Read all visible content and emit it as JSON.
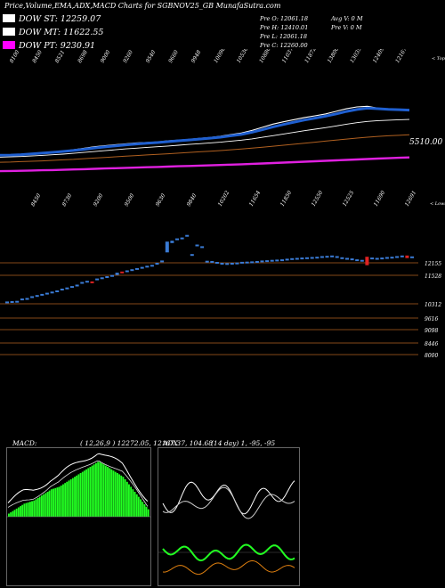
{
  "header": "Price,Volume,EMA,ADX,MACD Charts for SGBNOV25_GB MunafaSutra.com",
  "legend": [
    {
      "label": "DOW ST: 12259.07",
      "color": "#ffffff"
    },
    {
      "label": "DOW MT: 11622.55",
      "color": "#ffffff"
    },
    {
      "label": "DOW PT: 9230.91",
      "color": "#ff00ff"
    }
  ],
  "ohlc": {
    "open": "Pre O: 12061.18",
    "high": "Pre H: 12410.01",
    "low": "Pre L: 12061.18",
    "close": "Pre C: 12260.00",
    "avg_vol": "Avg V: 0 M",
    "pre_vol": "Pre V: 0 M"
  },
  "colors": {
    "up": "#3a7bd5",
    "down": "#dd2222",
    "ema_blue": "#1f5fd0",
    "ema_pink": "#e020e0",
    "ema_brown": "#8b4513",
    "macd_bar": "#22ff22",
    "grid": "#b06020"
  },
  "chart_data": [
    {
      "type": "line",
      "title": "EMA",
      "top_labels": [
        "8100",
        "8450",
        "8521",
        "8698",
        "9000",
        "9260",
        "9540",
        "9660",
        "9948",
        "10098",
        "10536",
        "10880",
        "11037",
        "11872",
        "13800",
        "13035",
        "12409",
        "12167"
      ],
      "axis_labels": {
        "top_right": "< Tops",
        "value_right": "5510.00"
      },
      "series": [
        {
          "name": "price",
          "values": [
            8400,
            8420,
            8480,
            8560,
            8640,
            8700,
            8780,
            8880,
            9000,
            9120,
            9200,
            9280,
            9350,
            9420,
            9460,
            9500,
            9580,
            9640,
            9700,
            9780,
            9850,
            9950,
            10080,
            10200,
            10400,
            10650,
            10900,
            11080,
            11250,
            11420,
            11550,
            11700,
            11900,
            12100,
            12250,
            12300,
            12150,
            12050,
            12020,
            11980
          ]
        },
        {
          "name": "ema_short",
          "values": [
            8450,
            8460,
            8500,
            8560,
            8620,
            8680,
            8750,
            8830,
            8920,
            9020,
            9110,
            9190,
            9270,
            9340,
            9400,
            9450,
            9520,
            9590,
            9650,
            9720,
            9790,
            9870,
            9980,
            10090,
            10260,
            10460,
            10680,
            10870,
            11050,
            11220,
            11370,
            11520,
            11700,
            11890,
            12050,
            12150,
            12110,
            12060,
            12030,
            12000
          ]
        },
        {
          "name": "ema_mid",
          "values": [
            8300,
            8320,
            8350,
            8390,
            8440,
            8490,
            8540,
            8600,
            8670,
            8740,
            8810,
            8880,
            8950,
            9010,
            9070,
            9120,
            9180,
            9240,
            9300,
            9360,
            9420,
            9480,
            9560,
            9640,
            9740,
            9860,
            9990,
            10120,
            10250,
            10380,
            10500,
            10620,
            10750,
            10890,
            11010,
            11110,
            11170,
            11210,
            11240,
            11260
          ]
        },
        {
          "name": "ema_long",
          "values": [
            7900,
            7920,
            7950,
            7980,
            8010,
            8050,
            8090,
            8130,
            8180,
            8230,
            8280,
            8330,
            8380,
            8430,
            8480,
            8520,
            8570,
            8620,
            8670,
            8720,
            8770,
            8820,
            8880,
            8940,
            9010,
            9080,
            9160,
            9240,
            9320,
            9400,
            9480,
            9560,
            9640,
            9720,
            9800,
            9870,
            9930,
            9980,
            10020,
            10060
          ]
        },
        {
          "name": "ema_pt",
          "values": [
            7200,
            7215,
            7230,
            7250,
            7270,
            7290,
            7310,
            7335,
            7360,
            7385,
            7410,
            7435,
            7460,
            7485,
            7510,
            7535,
            7560,
            7585,
            7610,
            7635,
            7660,
            7685,
            7715,
            7745,
            7775,
            7805,
            7840,
            7875,
            7910,
            7945,
            7980,
            8015,
            8050,
            8085,
            8120,
            8155,
            8190,
            8220,
            8250,
            8280
          ]
        }
      ]
    },
    {
      "type": "bar",
      "title": "Price",
      "top_labels": [
        "8450",
        "8730",
        "9200",
        "9500",
        "9630",
        "9840",
        "10202",
        "11654",
        "11850",
        "12550",
        "12525",
        "11690",
        "12691"
      ],
      "axis_labels": {
        "bottom_right": "< Lows"
      },
      "price_levels": [
        "12155",
        "11528",
        "10312",
        "9616",
        "9098",
        "8446",
        "8000"
      ],
      "candles": [
        {
          "o": 9890,
          "c": 9890,
          "up": true
        },
        {
          "o": 9900,
          "c": 9900,
          "up": true
        },
        {
          "o": 9910,
          "c": 9910,
          "up": true
        },
        {
          "o": 9960,
          "c": 9990,
          "up": true
        },
        {
          "o": 9990,
          "c": 10010,
          "up": true
        },
        {
          "o": 10040,
          "c": 10070,
          "up": true
        },
        {
          "o": 10080,
          "c": 10110,
          "up": true
        },
        {
          "o": 10120,
          "c": 10150,
          "up": true
        },
        {
          "o": 10150,
          "c": 10190,
          "up": true
        },
        {
          "o": 10200,
          "c": 10230,
          "up": true
        },
        {
          "o": 10240,
          "c": 10270,
          "up": true
        },
        {
          "o": 10290,
          "c": 10330,
          "up": true
        },
        {
          "o": 10330,
          "c": 10370,
          "up": true
        },
        {
          "o": 10380,
          "c": 10420,
          "up": true
        },
        {
          "o": 10440,
          "c": 10470,
          "up": true
        },
        {
          "o": 10520,
          "c": 10560,
          "up": true
        },
        {
          "o": 10560,
          "c": 10600,
          "up": true
        },
        {
          "o": 10580,
          "c": 10540,
          "up": false
        },
        {
          "o": 10640,
          "c": 10680,
          "up": true
        },
        {
          "o": 10680,
          "c": 10720,
          "up": true
        },
        {
          "o": 10720,
          "c": 10760,
          "up": true
        },
        {
          "o": 10760,
          "c": 10800,
          "up": true
        },
        {
          "o": 10800,
          "c": 10880,
          "up": true
        },
        {
          "o": 10880,
          "c": 10920,
          "up": false
        },
        {
          "o": 10920,
          "c": 10960,
          "up": true
        },
        {
          "o": 10960,
          "c": 11000,
          "up": true
        },
        {
          "o": 11000,
          "c": 11040,
          "up": true
        },
        {
          "o": 11040,
          "c": 11080,
          "up": true
        },
        {
          "o": 11080,
          "c": 11120,
          "up": true
        },
        {
          "o": 11110,
          "c": 11150,
          "up": true
        },
        {
          "o": 11160,
          "c": 11220,
          "up": true
        },
        {
          "o": 11240,
          "c": 11300,
          "up": true
        },
        {
          "o": 11580,
          "c": 11950,
          "up": true
        },
        {
          "o": 11900,
          "c": 11980,
          "up": true
        },
        {
          "o": 12000,
          "c": 12060,
          "up": true
        },
        {
          "o": 12050,
          "c": 12090,
          "up": true
        },
        {
          "o": 12150,
          "c": 12180,
          "up": true
        },
        {
          "o": 11500,
          "c": 11520,
          "up": true
        },
        {
          "o": 11820,
          "c": 11850,
          "up": true
        },
        {
          "o": 11760,
          "c": 11790,
          "up": true
        },
        {
          "o": 11270,
          "c": 11290,
          "up": true
        },
        {
          "o": 11260,
          "c": 11280,
          "up": true
        },
        {
          "o": 11230,
          "c": 11250,
          "up": true
        },
        {
          "o": 11200,
          "c": 11220,
          "up": true
        },
        {
          "o": 11180,
          "c": 11210,
          "up": true
        },
        {
          "o": 11190,
          "c": 11220,
          "up": true
        },
        {
          "o": 11200,
          "c": 11230,
          "up": true
        },
        {
          "o": 11230,
          "c": 11255,
          "up": true
        },
        {
          "o": 11240,
          "c": 11260,
          "up": true
        },
        {
          "o": 11250,
          "c": 11270,
          "up": true
        },
        {
          "o": 11260,
          "c": 11280,
          "up": true
        },
        {
          "o": 11270,
          "c": 11300,
          "up": true
        },
        {
          "o": 11280,
          "c": 11310,
          "up": true
        },
        {
          "o": 11290,
          "c": 11320,
          "up": true
        },
        {
          "o": 11300,
          "c": 11330,
          "up": true
        },
        {
          "o": 11310,
          "c": 11340,
          "up": true
        },
        {
          "o": 11330,
          "c": 11360,
          "up": true
        },
        {
          "o": 11350,
          "c": 11380,
          "up": true
        },
        {
          "o": 11360,
          "c": 11390,
          "up": true
        },
        {
          "o": 11370,
          "c": 11400,
          "up": true
        },
        {
          "o": 11380,
          "c": 11410,
          "up": true
        },
        {
          "o": 11390,
          "c": 11420,
          "up": true
        },
        {
          "o": 11400,
          "c": 11430,
          "up": true
        },
        {
          "o": 11420,
          "c": 11450,
          "up": true
        },
        {
          "o": 11430,
          "c": 11460,
          "up": true
        },
        {
          "o": 11440,
          "c": 11470,
          "up": true
        },
        {
          "o": 11430,
          "c": 11450,
          "up": true
        },
        {
          "o": 11400,
          "c": 11410,
          "up": true
        },
        {
          "o": 11380,
          "c": 11390,
          "up": true
        },
        {
          "o": 11350,
          "c": 11370,
          "up": true
        },
        {
          "o": 11330,
          "c": 11340,
          "up": true
        },
        {
          "o": 11300,
          "c": 11320,
          "up": true
        },
        {
          "o": 11430,
          "c": 11140,
          "up": false
        },
        {
          "o": 11380,
          "c": 11400,
          "up": true
        },
        {
          "o": 11360,
          "c": 11390,
          "up": true
        },
        {
          "o": 11380,
          "c": 11400,
          "up": true
        },
        {
          "o": 11400,
          "c": 11420,
          "up": true
        },
        {
          "o": 11410,
          "c": 11430,
          "up": true
        },
        {
          "o": 11430,
          "c": 11450,
          "up": true
        },
        {
          "o": 11440,
          "c": 11470,
          "up": true
        },
        {
          "o": 11470,
          "c": 11380,
          "up": false
        },
        {
          "o": 11400,
          "c": 11440,
          "up": true
        }
      ]
    },
    {
      "type": "line",
      "title": "MACD",
      "label": "MACD:",
      "values_text": "( 12,26,9 ) 12272.05, 12167.37, 104.68",
      "bars": [
        0.05,
        0.07,
        0.09,
        0.11,
        0.13,
        0.15,
        0.17,
        0.19,
        0.21,
        0.22,
        0.23,
        0.24,
        0.25,
        0.26,
        0.28,
        0.3,
        0.32,
        0.34,
        0.36,
        0.38,
        0.4,
        0.42,
        0.44,
        0.45,
        0.46,
        0.47,
        0.48,
        0.5,
        0.52,
        0.54,
        0.56,
        0.58,
        0.6,
        0.62,
        0.64,
        0.66,
        0.68,
        0.7,
        0.72,
        0.74,
        0.76,
        0.78,
        0.8,
        0.82,
        0.84,
        0.86,
        0.88,
        0.88,
        0.86,
        0.84,
        0.82,
        0.8,
        0.78,
        0.76,
        0.74,
        0.72,
        0.7,
        0.68,
        0.66,
        0.64,
        0.6,
        0.56,
        0.52,
        0.48,
        0.44,
        0.4,
        0.36,
        0.32,
        0.28,
        0.24,
        0.2,
        0.16,
        0.12
      ]
    },
    {
      "type": "line",
      "title": "ADX",
      "label": "ADX",
      "values_text": "(14 day) 1, -95, -95"
    }
  ]
}
